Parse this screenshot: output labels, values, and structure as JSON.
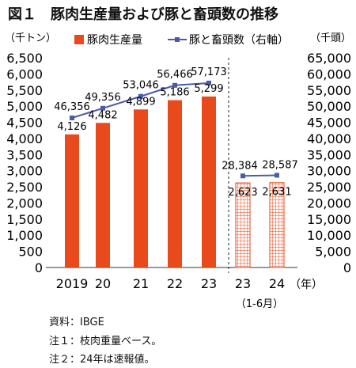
{
  "chart_data": {
    "type": "bar",
    "title": "図１　豚肉生産量および豚と畜頭数の推移",
    "y_left_unit": "（千トン）",
    "y_right_unit": "（千頭）",
    "ylim_left": [
      0,
      6500
    ],
    "ylim_right": [
      0,
      65000
    ],
    "y_left_ticks": [
      "0",
      "500",
      "1,000",
      "1,500",
      "2,000",
      "2,500",
      "3,000",
      "3,500",
      "4,000",
      "4,500",
      "5,000",
      "5,500",
      "6,000",
      "6,500"
    ],
    "y_right_ticks": [
      "0",
      "5,000",
      "10,000",
      "15,000",
      "20,000",
      "25,000",
      "30,000",
      "35,000",
      "40,000",
      "45,000",
      "50,000",
      "55,000",
      "60,000",
      "65,000"
    ],
    "categories": [
      "2019",
      "20",
      "21",
      "22",
      "23",
      "23",
      "24"
    ],
    "x_unit": "（年）",
    "x_sublabel": "（1-6月）",
    "legend": {
      "bar": "豚肉生産量",
      "line": "豚と畜頭数（右軸）"
    },
    "series": [
      {
        "name": "豚肉生産量",
        "axis": "left",
        "annual": {
          "values": [
            4126,
            4482,
            4899,
            5186,
            5299
          ],
          "labels": [
            "4,126",
            "4,482",
            "4,899",
            "5,186",
            "5,299"
          ]
        },
        "half": {
          "values": [
            2623,
            2631
          ],
          "labels": [
            "2,623",
            "2,631"
          ]
        },
        "color": "#e84a1b"
      },
      {
        "name": "豚と畜頭数（右軸）",
        "axis": "right",
        "annual": {
          "values": [
            46356,
            49356,
            53046,
            56466,
            57173
          ],
          "labels": [
            "46,356",
            "49,356",
            "53,046",
            "56,466",
            "57,173"
          ]
        },
        "half": {
          "values": [
            28384,
            28587
          ],
          "labels": [
            "28,384",
            "28,587"
          ]
        },
        "color": "#4a5ca8"
      }
    ],
    "grid": false,
    "legend_position": "top"
  },
  "notes": [
    "資料：IBGE",
    "注１：枝肉重量ベース。",
    "注２：24年は速報値。"
  ]
}
